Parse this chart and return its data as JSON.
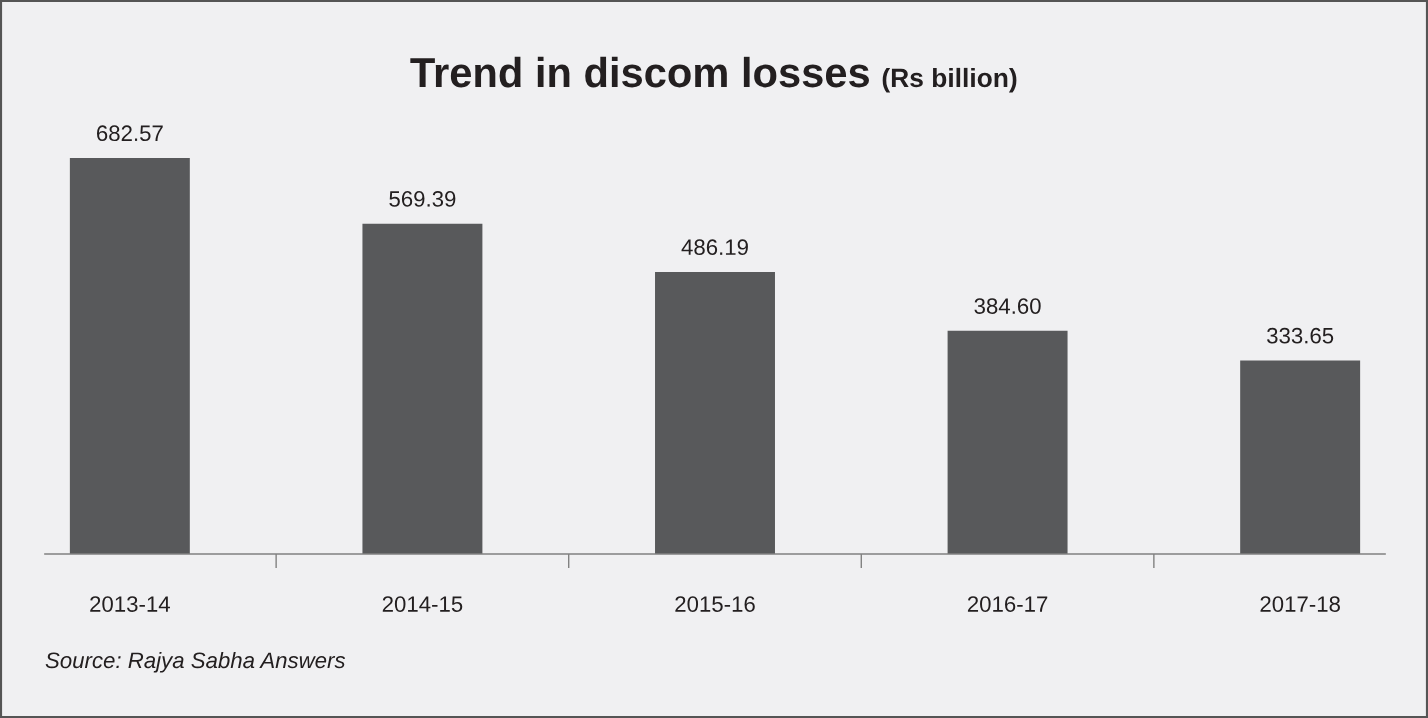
{
  "chart_data": {
    "type": "bar",
    "title": "Trend in discom losses",
    "subtitle": "(Rs billion)",
    "categories": [
      "2013-14",
      "2014-15",
      "2015-16",
      "2016-17",
      "2017-18"
    ],
    "values": [
      682.57,
      569.39,
      486.19,
      384.6,
      333.65
    ],
    "value_labels": [
      "682.57",
      "569.39",
      "486.19",
      "384.60",
      "333.65"
    ],
    "color": "#58595b",
    "annotations": [
      "Source: Rajya Sabha Answers"
    ]
  }
}
